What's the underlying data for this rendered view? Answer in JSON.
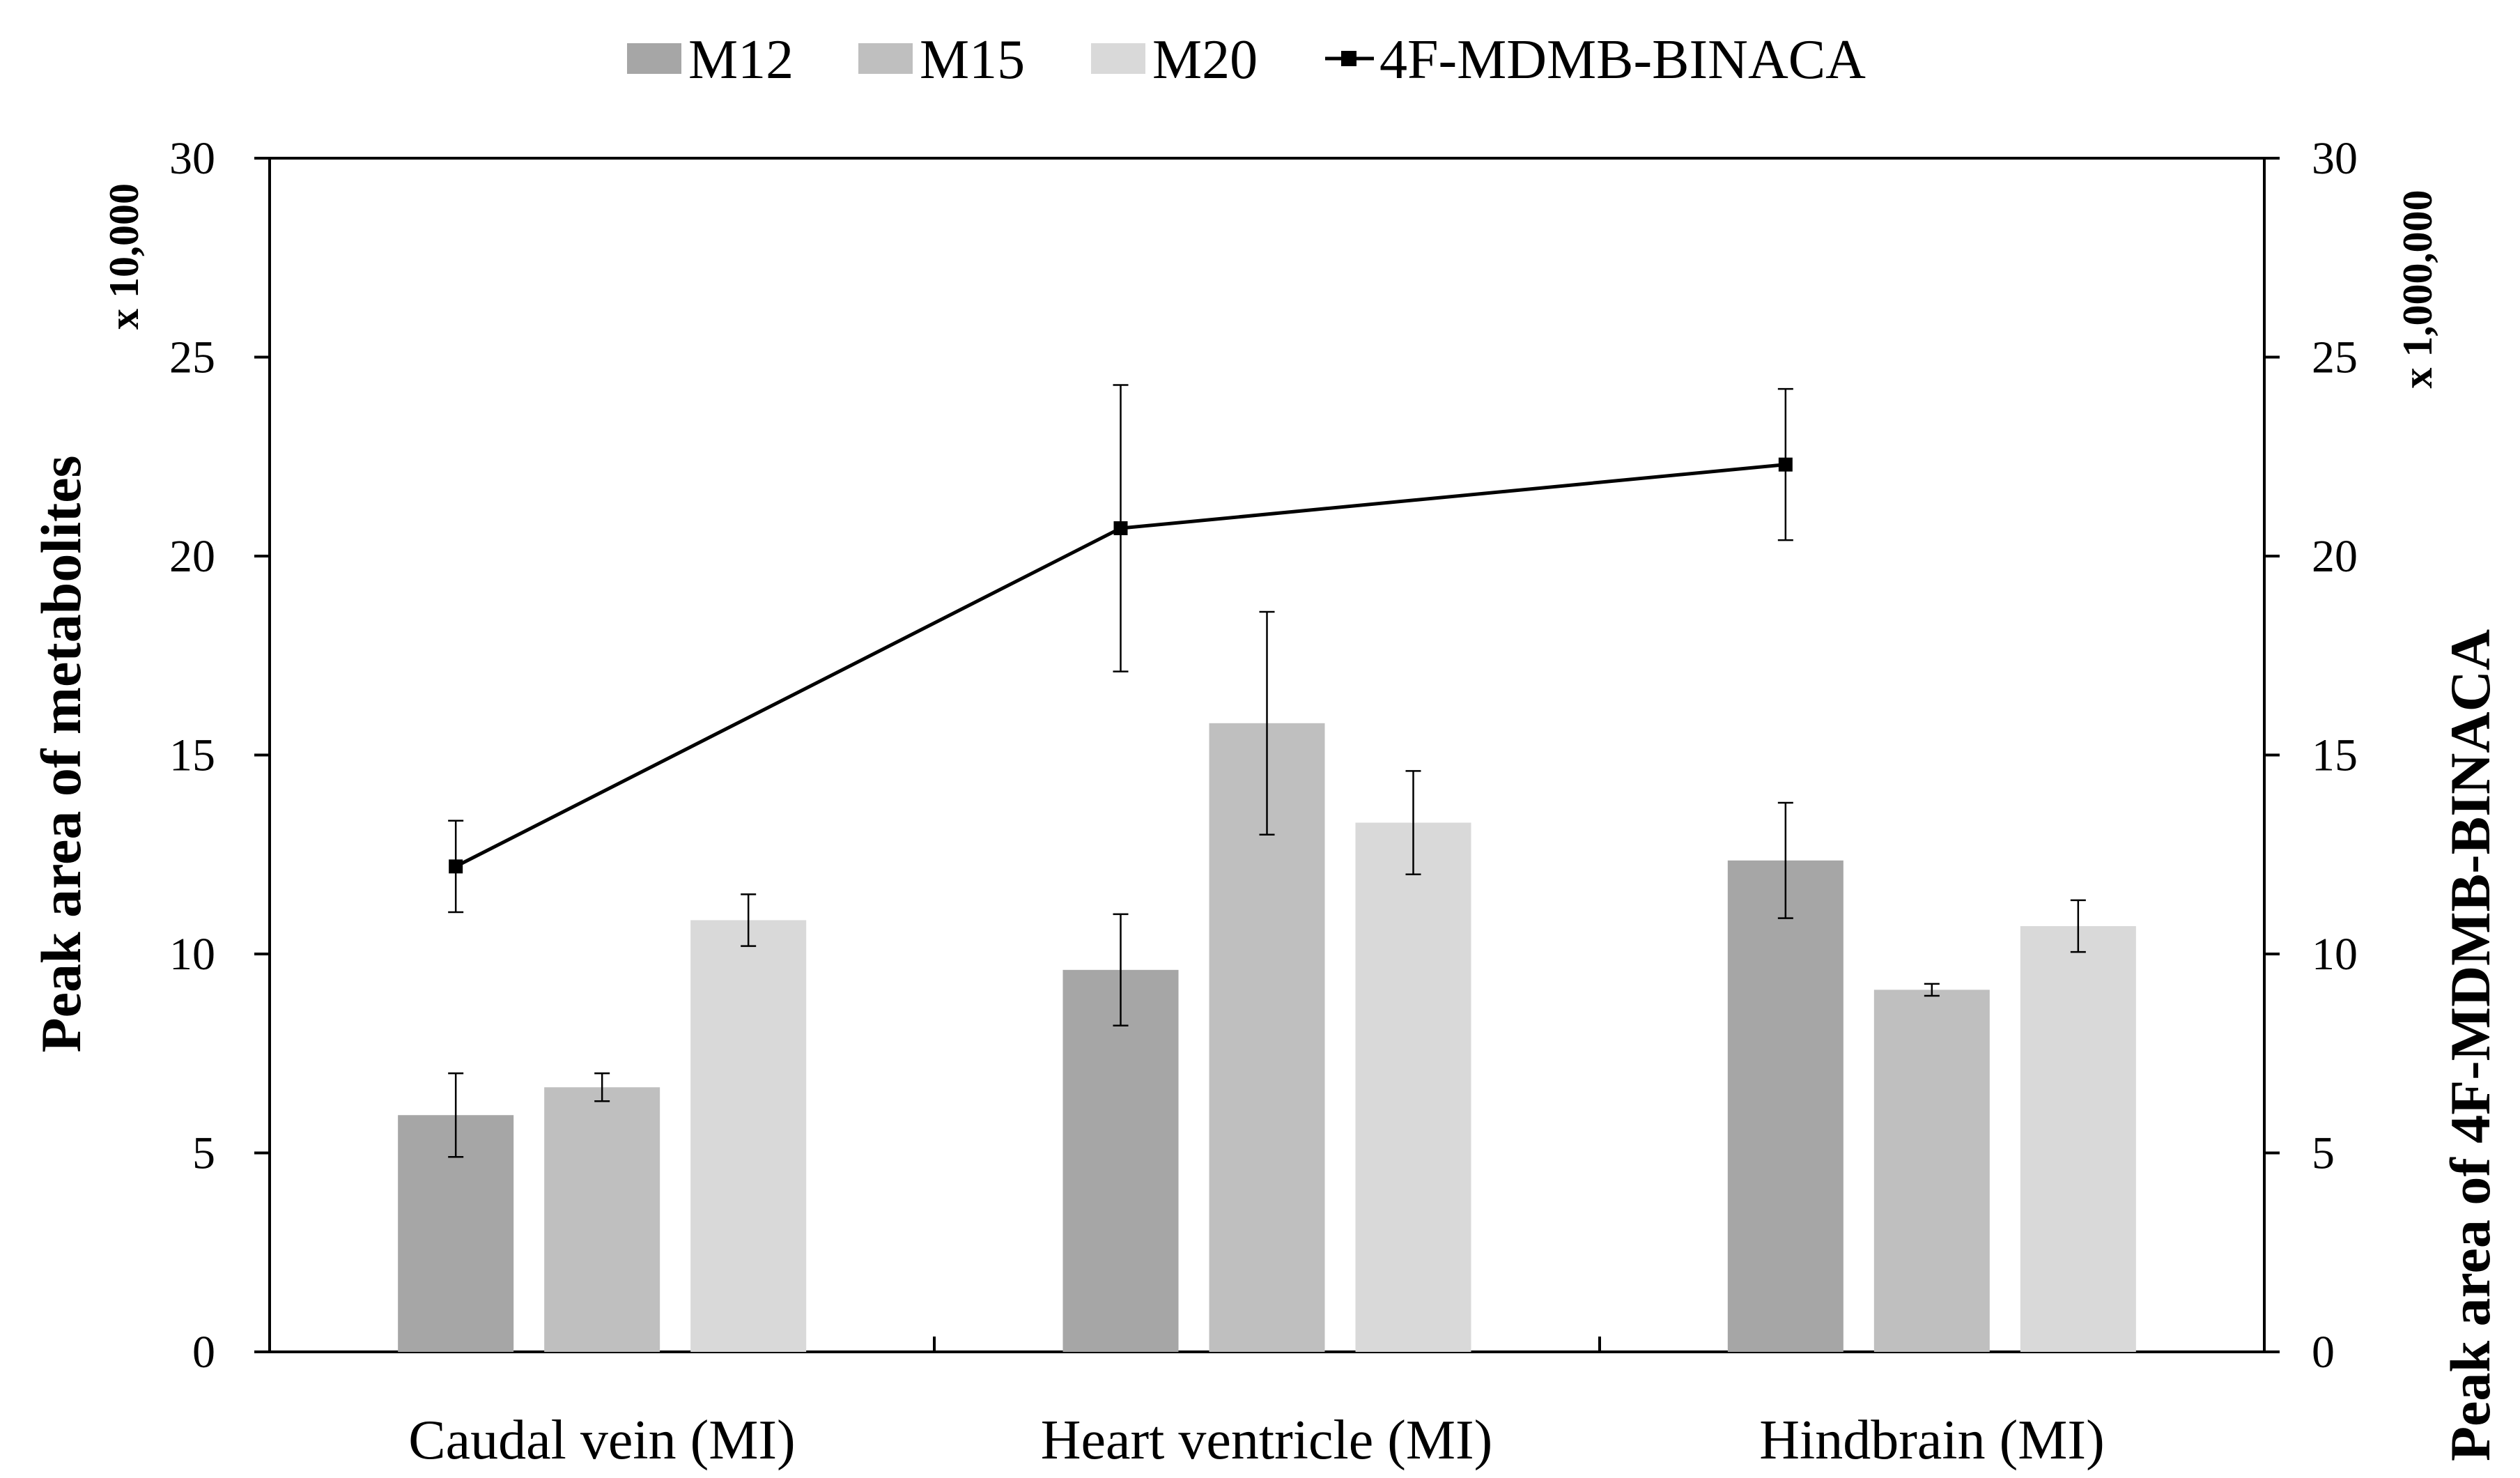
{
  "chart_data": {
    "type": "bar",
    "categories": [
      "Caudal vein (MI)",
      "Heart ventricle (MI)",
      "Hindbrain (MI)"
    ],
    "series": [
      {
        "name": "M12",
        "kind": "bar",
        "axis": "left",
        "color": "#a6a6a6",
        "values": [
          5.95,
          9.6,
          12.35
        ],
        "errors": [
          1.05,
          1.4,
          1.45
        ]
      },
      {
        "name": "M15",
        "kind": "bar",
        "axis": "left",
        "color": "#bfbfbf",
        "values": [
          6.65,
          15.8,
          9.1
        ],
        "errors": [
          0.35,
          2.8,
          0.15
        ]
      },
      {
        "name": "M20",
        "kind": "bar",
        "axis": "left",
        "color": "#d9d9d9",
        "values": [
          10.85,
          13.3,
          10.7
        ],
        "errors": [
          0.65,
          1.3,
          0.65
        ]
      },
      {
        "name": "4F-MDMB-BINACA",
        "kind": "line",
        "axis": "right",
        "color": "#000000",
        "values": [
          12.2,
          20.7,
          22.3
        ],
        "errors": [
          1.15,
          3.6,
          1.9
        ]
      }
    ],
    "left_axis": {
      "label": "Peak area of metabolites",
      "multiplier": "x 10,000",
      "ylim": [
        0,
        30
      ],
      "ticks": [
        "0",
        "5",
        "10",
        "15",
        "20",
        "25",
        "30"
      ]
    },
    "right_axis": {
      "label": "Peak  area of 4F-MDMB-BINACA",
      "multiplier": "x 1,000,000",
      "ylim": [
        0,
        30
      ],
      "ticks": [
        "0",
        "5",
        "10",
        "15",
        "20",
        "25",
        "30"
      ]
    },
    "legend": {
      "position": "top",
      "entries": [
        "M12",
        "M15",
        "M20",
        "4F-MDMB-BINACA"
      ]
    },
    "grid": false
  }
}
